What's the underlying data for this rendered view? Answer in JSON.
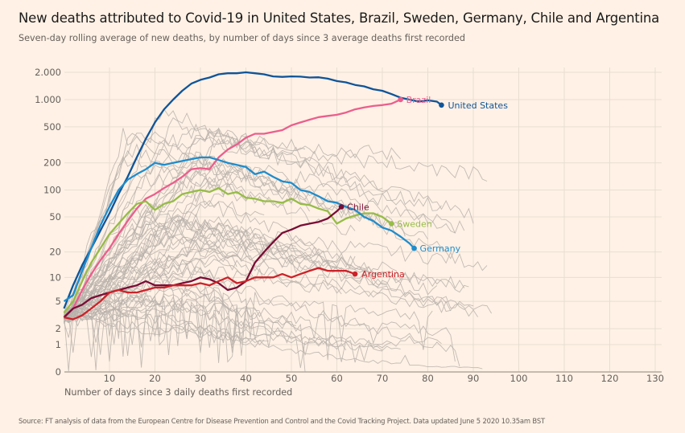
{
  "chart_data": {
    "type": "line",
    "title": "New deaths attributed to Covid-19 in United States, Brazil, Sweden, Germany, Chile and Argentina",
    "subtitle": "Seven-day rolling average of new deaths, by number of days since 3 average deaths first recorded",
    "xlabel": "Number of days since 3 daily deaths first recorded",
    "ylabel": "",
    "source": "Source: FT analysis of data from the European Centre for Disease Prevention and Control and the Covid Tracking Project. Data updated June 5 2020 10.35am BST",
    "xlim": [
      0,
      137
    ],
    "ylim": [
      0,
      2000
    ],
    "yscale": "log(1+y)",
    "grid": true,
    "x_ticks": [
      10,
      20,
      30,
      40,
      50,
      60,
      70,
      80,
      90,
      100,
      110,
      120,
      130
    ],
    "y_ticks": [
      0,
      1,
      2,
      5,
      10,
      20,
      50,
      100,
      200,
      500,
      1000,
      2000
    ],
    "y_tick_labels": [
      "0",
      "1",
      "2",
      "5",
      "10",
      "20",
      "50",
      "100",
      "200",
      "500",
      "1.000",
      "2.000"
    ],
    "highlight_series": [
      {
        "name": "United States",
        "color": "#0f5499",
        "x": [
          0,
          2,
          4,
          6,
          8,
          10,
          12,
          14,
          16,
          18,
          20,
          22,
          24,
          26,
          28,
          30,
          32,
          34,
          36,
          38,
          40,
          42,
          44,
          46,
          48,
          50,
          52,
          54,
          56,
          58,
          60,
          62,
          64,
          66,
          68,
          70,
          72,
          74,
          76,
          78,
          80,
          82,
          83
        ],
        "y": [
          4,
          8,
          14,
          22,
          35,
          55,
          90,
          140,
          230,
          370,
          560,
          780,
          1000,
          1250,
          1500,
          1650,
          1750,
          1900,
          1950,
          1950,
          2000,
          1950,
          1900,
          1800,
          1780,
          1800,
          1790,
          1750,
          1760,
          1700,
          1600,
          1550,
          1450,
          1400,
          1300,
          1250,
          1150,
          1050,
          1000,
          950,
          980,
          950,
          870
        ]
      },
      {
        "name": "Brazil",
        "color": "#eb5e8d",
        "x": [
          0,
          2,
          4,
          6,
          8,
          10,
          12,
          14,
          16,
          18,
          20,
          22,
          24,
          26,
          28,
          30,
          32,
          34,
          36,
          38,
          40,
          42,
          44,
          46,
          48,
          50,
          52,
          54,
          56,
          58,
          60,
          62,
          64,
          66,
          68,
          70,
          72,
          74
        ],
        "y": [
          3,
          4,
          7,
          11,
          16,
          22,
          32,
          45,
          62,
          80,
          90,
          105,
          120,
          140,
          170,
          175,
          170,
          230,
          280,
          320,
          380,
          420,
          420,
          440,
          460,
          520,
          560,
          600,
          640,
          660,
          680,
          720,
          780,
          820,
          850,
          870,
          900,
          1000
        ]
      },
      {
        "name": "Sweden",
        "color": "#96bc47",
        "x": [
          0,
          2,
          4,
          6,
          8,
          10,
          12,
          14,
          16,
          18,
          20,
          22,
          24,
          26,
          28,
          30,
          32,
          34,
          36,
          38,
          40,
          42,
          44,
          46,
          48,
          50,
          52,
          54,
          56,
          58,
          60,
          62,
          64,
          66,
          68,
          70,
          72
        ],
        "y": [
          3.5,
          5,
          9,
          15,
          22,
          32,
          42,
          55,
          70,
          75,
          60,
          70,
          75,
          90,
          95,
          100,
          95,
          105,
          90,
          95,
          82,
          80,
          75,
          75,
          72,
          80,
          70,
          68,
          62,
          58,
          42,
          48,
          52,
          55,
          55,
          50,
          42
        ]
      },
      {
        "name": "Germany",
        "color": "#1f8ccc",
        "x": [
          0,
          2,
          4,
          6,
          8,
          10,
          12,
          14,
          16,
          18,
          20,
          22,
          24,
          26,
          28,
          30,
          32,
          34,
          36,
          38,
          40,
          42,
          44,
          46,
          48,
          50,
          52,
          54,
          56,
          58,
          60,
          62,
          64,
          66,
          68,
          70,
          72,
          74,
          76,
          77
        ],
        "y": [
          5,
          6,
          12,
          22,
          40,
          65,
          100,
          130,
          150,
          170,
          200,
          190,
          200,
          210,
          220,
          230,
          230,
          215,
          200,
          190,
          180,
          150,
          160,
          140,
          125,
          120,
          100,
          95,
          85,
          75,
          72,
          65,
          60,
          50,
          45,
          38,
          35,
          30,
          25,
          22
        ]
      },
      {
        "name": "Chile",
        "color": "#790d35",
        "x": [
          0,
          2,
          4,
          6,
          8,
          10,
          12,
          14,
          16,
          18,
          20,
          22,
          24,
          26,
          28,
          30,
          32,
          34,
          36,
          38,
          40,
          42,
          44,
          46,
          48,
          50,
          52,
          54,
          56,
          58,
          60,
          61
        ],
        "y": [
          3,
          4,
          4.5,
          5.5,
          6,
          6.5,
          7,
          7.5,
          8,
          9,
          8,
          8,
          8,
          8.5,
          9,
          10,
          9.5,
          8.5,
          7,
          7.5,
          9,
          15,
          20,
          26,
          33,
          36,
          40,
          42,
          44,
          48,
          58,
          65
        ]
      },
      {
        "name": "Argentina",
        "color": "#cc2229",
        "x": [
          0,
          2,
          4,
          6,
          8,
          10,
          12,
          14,
          16,
          18,
          20,
          22,
          24,
          26,
          28,
          30,
          32,
          34,
          36,
          38,
          40,
          42,
          44,
          46,
          48,
          50,
          52,
          54,
          56,
          58,
          60,
          62,
          64
        ],
        "y": [
          3,
          2.8,
          3.2,
          4,
          5,
          6.5,
          7,
          6.5,
          6.5,
          7,
          7.5,
          7.5,
          8,
          8,
          8,
          8.5,
          8,
          9,
          10,
          8.5,
          9,
          10,
          10,
          10,
          11,
          10,
          11,
          12,
          13,
          12,
          12,
          12,
          11
        ]
      }
    ],
    "background_series_count": 60,
    "background_series_color": "#b8b1ab"
  }
}
